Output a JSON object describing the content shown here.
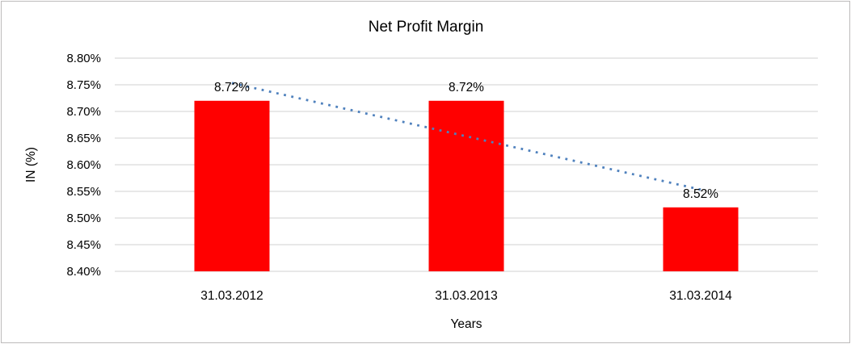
{
  "chart_data": {
    "type": "bar",
    "title": "Net Profit Margin",
    "categories": [
      "31.03.2012",
      "31.03.2013",
      "31.03.2014"
    ],
    "values": [
      8.72,
      8.72,
      8.52
    ],
    "data_labels": [
      "8.72%",
      "8.72%",
      "8.52%"
    ],
    "xlabel": "Years",
    "ylabel": "IN (%)",
    "ylim": [
      8.4,
      8.8
    ],
    "ytick_step": 0.05,
    "ytick_labels": [
      "8.40%",
      "8.45%",
      "8.50%",
      "8.55%",
      "8.60%",
      "8.65%",
      "8.70%",
      "8.75%",
      "8.80%"
    ],
    "grid": true,
    "legend_position": "none",
    "bar_color": "#FF0000",
    "gridline_color": "#D9D9D9",
    "text_color": "#000000",
    "frame_color": "#BDBBBB",
    "trendline": {
      "type": "linear",
      "style": "dotted",
      "color": "#4F81BD"
    }
  }
}
